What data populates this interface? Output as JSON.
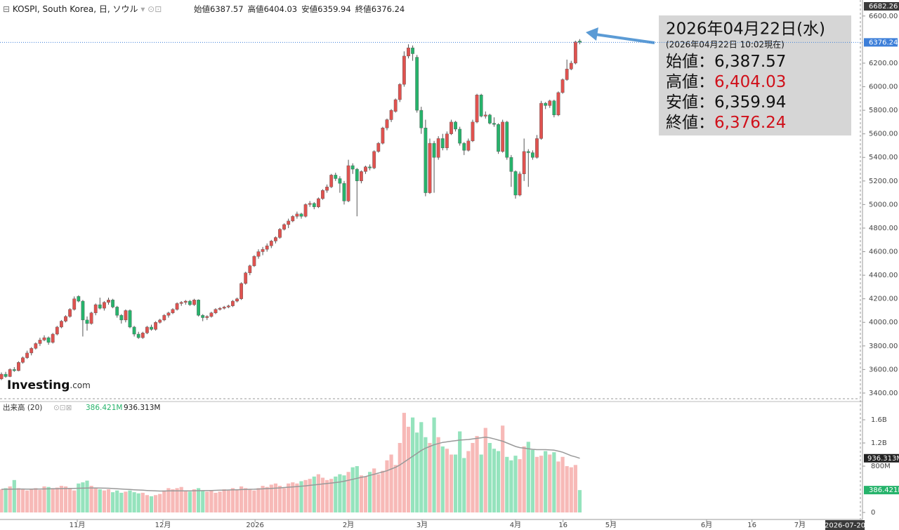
{
  "chart_data": {
    "type": "candlestick",
    "title": "KOSPI, South Korea, 日, ソウル",
    "header_labels": [
      "始値",
      "高値",
      "安値",
      "終値"
    ],
    "up_color": "#e0524f",
    "down_color": "#26b36b",
    "ohlc": [
      [
        3520,
        3575,
        3510,
        3560
      ],
      [
        3560,
        3580,
        3530,
        3540
      ],
      [
        3540,
        3610,
        3535,
        3600
      ],
      [
        3600,
        3620,
        3580,
        3590
      ],
      [
        3590,
        3670,
        3585,
        3660
      ],
      [
        3660,
        3710,
        3650,
        3700
      ],
      [
        3700,
        3760,
        3690,
        3740
      ],
      [
        3740,
        3790,
        3720,
        3780
      ],
      [
        3780,
        3830,
        3770,
        3820
      ],
      [
        3820,
        3870,
        3800,
        3850
      ],
      [
        3850,
        3890,
        3840,
        3870
      ],
      [
        3870,
        3880,
        3810,
        3830
      ],
      [
        3830,
        3910,
        3820,
        3900
      ],
      [
        3900,
        3970,
        3890,
        3960
      ],
      [
        3960,
        4020,
        3950,
        4010
      ],
      [
        4010,
        4060,
        4000,
        4050
      ],
      [
        4050,
        4120,
        4040,
        4110
      ],
      [
        4110,
        4220,
        4100,
        4200
      ],
      [
        4220,
        4230,
        4170,
        4180
      ],
      [
        4180,
        4190,
        3880,
        4020
      ],
      [
        4020,
        4050,
        3930,
        3990
      ],
      [
        3990,
        4090,
        3980,
        4080
      ],
      [
        4080,
        4160,
        4060,
        4150
      ],
      [
        4150,
        4210,
        4110,
        4120
      ],
      [
        4120,
        4180,
        4100,
        4170
      ],
      [
        4170,
        4210,
        4150,
        4190
      ],
      [
        4190,
        4200,
        4120,
        4130
      ],
      [
        4130,
        4140,
        4040,
        4060
      ],
      [
        4060,
        4070,
        3990,
        4020
      ],
      [
        4020,
        4110,
        4000,
        4100
      ],
      [
        4100,
        4110,
        3950,
        3960
      ],
      [
        3960,
        3970,
        3880,
        3900
      ],
      [
        3900,
        3920,
        3860,
        3870
      ],
      [
        3870,
        3920,
        3860,
        3910
      ],
      [
        3910,
        3970,
        3900,
        3960
      ],
      [
        3960,
        3980,
        3930,
        3940
      ],
      [
        3940,
        4010,
        3930,
        4000
      ],
      [
        4000,
        4030,
        3990,
        4020
      ],
      [
        4020,
        4070,
        4010,
        4060
      ],
      [
        4060,
        4090,
        4040,
        4080
      ],
      [
        4080,
        4120,
        4070,
        4110
      ],
      [
        4110,
        4170,
        4100,
        4160
      ],
      [
        4160,
        4180,
        4140,
        4170
      ],
      [
        4170,
        4190,
        4150,
        4180
      ],
      [
        4180,
        4190,
        4140,
        4150
      ],
      [
        4150,
        4200,
        4140,
        4190
      ],
      [
        4190,
        4195,
        4050,
        4060
      ],
      [
        4060,
        4070,
        4010,
        4040
      ],
      [
        4040,
        4060,
        4020,
        4050
      ],
      [
        4050,
        4090,
        4040,
        4080
      ],
      [
        4080,
        4120,
        4070,
        4110
      ],
      [
        4110,
        4130,
        4100,
        4120
      ],
      [
        4120,
        4140,
        4110,
        4130
      ],
      [
        4130,
        4150,
        4120,
        4140
      ],
      [
        4140,
        4190,
        4130,
        4180
      ],
      [
        4180,
        4210,
        4170,
        4200
      ],
      [
        4200,
        4340,
        4190,
        4330
      ],
      [
        4330,
        4430,
        4320,
        4420
      ],
      [
        4420,
        4490,
        4400,
        4480
      ],
      [
        4480,
        4570,
        4470,
        4560
      ],
      [
        4560,
        4620,
        4540,
        4600
      ],
      [
        4600,
        4640,
        4570,
        4620
      ],
      [
        4620,
        4670,
        4600,
        4650
      ],
      [
        4650,
        4700,
        4630,
        4690
      ],
      [
        4690,
        4730,
        4670,
        4720
      ],
      [
        4720,
        4800,
        4710,
        4790
      ],
      [
        4790,
        4840,
        4780,
        4830
      ],
      [
        4830,
        4880,
        4800,
        4860
      ],
      [
        4860,
        4910,
        4850,
        4900
      ],
      [
        4900,
        4940,
        4880,
        4920
      ],
      [
        4920,
        4930,
        4880,
        4900
      ],
      [
        4900,
        5010,
        4890,
        5000
      ],
      [
        5000,
        5030,
        4980,
        5010
      ],
      [
        5010,
        5020,
        4960,
        4980
      ],
      [
        4980,
        5060,
        4970,
        5050
      ],
      [
        5050,
        5130,
        5040,
        5120
      ],
      [
        5120,
        5170,
        5100,
        5150
      ],
      [
        5150,
        5260,
        5140,
        5250
      ],
      [
        5250,
        5270,
        5200,
        5220
      ],
      [
        5220,
        5240,
        5100,
        5180
      ],
      [
        5180,
        5200,
        5000,
        5030
      ],
      [
        5030,
        5380,
        5020,
        5330
      ],
      [
        5330,
        5350,
        5260,
        5300
      ],
      [
        5300,
        5310,
        4900,
        5200
      ],
      [
        5200,
        5290,
        5180,
        5280
      ],
      [
        5280,
        5330,
        5260,
        5320
      ],
      [
        5320,
        5340,
        5290,
        5310
      ],
      [
        5310,
        5460,
        5300,
        5450
      ],
      [
        5450,
        5530,
        5440,
        5520
      ],
      [
        5520,
        5660,
        5510,
        5650
      ],
      [
        5650,
        5730,
        5630,
        5720
      ],
      [
        5720,
        5810,
        5700,
        5800
      ],
      [
        5790,
        5900,
        5780,
        5890
      ],
      [
        5890,
        6030,
        5870,
        6020
      ],
      [
        6020,
        6300,
        6000,
        6260
      ],
      [
        6260,
        6360,
        6240,
        6330
      ],
      [
        6330,
        6350,
        6220,
        6280
      ],
      [
        6250,
        6270,
        5780,
        5800
      ],
      [
        5800,
        5830,
        5600,
        5650
      ],
      [
        5650,
        5720,
        5070,
        5100
      ],
      [
        5100,
        5560,
        5090,
        5520
      ],
      [
        5520,
        5540,
        5100,
        5400
      ],
      [
        5400,
        5580,
        5380,
        5560
      ],
      [
        5560,
        5600,
        5460,
        5480
      ],
      [
        5480,
        5620,
        5460,
        5600
      ],
      [
        5600,
        5720,
        5590,
        5700
      ],
      [
        5700,
        5710,
        5620,
        5640
      ],
      [
        5640,
        5660,
        5500,
        5520
      ],
      [
        5520,
        5530,
        5420,
        5460
      ],
      [
        5460,
        5560,
        5450,
        5540
      ],
      [
        5540,
        5720,
        5530,
        5700
      ],
      [
        5700,
        5940,
        5690,
        5930
      ],
      [
        5930,
        5940,
        5740,
        5750
      ],
      [
        5750,
        5790,
        5730,
        5760
      ],
      [
        5760,
        5770,
        5680,
        5690
      ],
      [
        5690,
        5740,
        5660,
        5680
      ],
      [
        5680,
        5690,
        5430,
        5450
      ],
      [
        5450,
        5720,
        5440,
        5700
      ],
      [
        5700,
        5710,
        5380,
        5400
      ],
      [
        5400,
        5420,
        5150,
        5280
      ],
      [
        5280,
        5290,
        5050,
        5080
      ],
      [
        5080,
        5280,
        5070,
        5260
      ],
      [
        5260,
        5560,
        5200,
        5450
      ],
      [
        5450,
        5470,
        5150,
        5440
      ],
      [
        5440,
        5460,
        5380,
        5400
      ],
      [
        5400,
        5590,
        5390,
        5560
      ],
      [
        5560,
        5880,
        5550,
        5860
      ],
      [
        5860,
        5870,
        5810,
        5840
      ],
      [
        5840,
        5890,
        5820,
        5880
      ],
      [
        5880,
        5890,
        5740,
        5760
      ],
      [
        5760,
        5960,
        5750,
        5950
      ],
      [
        5950,
        6070,
        5940,
        6060
      ],
      [
        6060,
        6230,
        6050,
        6150
      ],
      [
        6150,
        6220,
        6140,
        6200
      ],
      [
        6200,
        6390,
        6190,
        6380
      ],
      [
        6387.57,
        6404.03,
        6359.94,
        6376.24
      ]
    ],
    "xlim": [
      -0.33,
      200.5
    ],
    "xticks": [
      {
        "value": 17.7,
        "label": "11月"
      },
      {
        "value": 37.7,
        "label": "12月"
      },
      {
        "value": 59.2,
        "label": "2026"
      },
      {
        "value": 81,
        "label": "2月"
      },
      {
        "value": 98.2,
        "label": "3月"
      },
      {
        "value": 120,
        "label": "4月"
      },
      {
        "value": 131.1,
        "label": "16"
      },
      {
        "value": 142.3,
        "label": "5月"
      },
      {
        "value": 164.6,
        "label": "6月"
      },
      {
        "value": 175.2,
        "label": "16"
      },
      {
        "value": 186.4,
        "label": "7月"
      }
    ],
    "crosshair_x": {
      "value": 196.9,
      "label": "2026-07-20"
    },
    "ylim": [
      3340,
      6682.26
    ],
    "yticks": [
      {
        "value": 3400,
        "label": "3400.00"
      },
      {
        "value": 3600,
        "label": "3600.00"
      },
      {
        "value": 3800,
        "label": "3800.00"
      },
      {
        "value": 4000,
        "label": "4000.00"
      },
      {
        "value": 4200,
        "label": "4200.00"
      },
      {
        "value": 4400,
        "label": "4400.00"
      },
      {
        "value": 4600,
        "label": "4600.00"
      },
      {
        "value": 4800,
        "label": "4800.00"
      },
      {
        "value": 5000,
        "label": "5000.00"
      },
      {
        "value": 5200,
        "label": "5200.00"
      },
      {
        "value": 5400,
        "label": "5400.00"
      },
      {
        "value": 5600,
        "label": "5600.00"
      },
      {
        "value": 5800,
        "label": "5800.00"
      },
      {
        "value": 6000,
        "label": "6000.00"
      },
      {
        "value": 6200,
        "label": "6200.00"
      },
      {
        "value": 6600,
        "label": "6600.00"
      }
    ],
    "volume": {
      "title": "出来高 (20)",
      "up_color": "#f7b9b7",
      "down_color": "#95e3bd",
      "ylim": [
        -121,
        1879
      ],
      "yticks": [
        0,
        {
          "value": 800,
          "label": "800M"
        },
        {
          "value": 1200,
          "label": "1.2B"
        },
        {
          "value": 1600,
          "label": "1.6B"
        }
      ],
      "values": [
        400,
        420,
        450,
        560,
        420,
        400,
        380,
        400,
        420,
        390,
        450,
        440,
        420,
        430,
        460,
        450,
        420,
        380,
        500,
        520,
        550,
        460,
        420,
        400,
        380,
        400,
        350,
        380,
        340,
        360,
        380,
        350,
        330,
        340,
        300,
        280,
        300,
        320,
        380,
        420,
        400,
        420,
        440,
        380,
        360,
        400,
        420,
        380,
        360,
        380,
        340,
        360,
        400,
        380,
        420,
        390,
        450,
        420,
        400,
        380,
        420,
        460,
        440,
        480,
        500,
        460,
        420,
        500,
        520,
        500,
        540,
        560,
        580,
        620,
        660,
        600,
        560,
        580,
        620,
        660,
        640,
        700,
        780,
        800,
        640,
        620,
        700,
        760,
        660,
        720,
        900,
        1000,
        820,
        1200,
        1720,
        1480,
        1640,
        1380,
        1560,
        1300,
        1200,
        1640,
        1300,
        1140,
        1100,
        1000,
        1000,
        1400,
        940,
        1060,
        1200,
        1320,
        1000,
        1460,
        1200,
        1100,
        1060,
        1500,
        960,
        900,
        980,
        920,
        1140,
        1220,
        1080,
        960,
        980,
        1060,
        1000,
        1040,
        880,
        960,
        800,
        780,
        820,
        386.421
      ],
      "last_label": "386.421M",
      "ma": {
        "color": "#999999",
        "values": [
          400,
          400,
          402,
          404,
          405,
          405,
          404,
          404,
          405,
          405,
          406,
          408,
          410,
          410,
          412,
          414,
          415,
          415,
          418,
          420,
          422,
          423,
          423,
          422,
          420,
          418,
          414,
          410,
          405,
          400,
          396,
          392,
          388,
          384,
          380,
          376,
          372,
          370,
          370,
          372,
          372,
          373,
          374,
          374,
          374,
          375,
          376,
          377,
          378,
          380,
          382,
          384,
          386,
          388,
          390,
          392,
          395,
          398,
          400,
          402,
          405,
          408,
          412,
          416,
          420,
          425,
          430,
          436,
          442,
          448,
          454,
          460,
          468,
          476,
          484,
          492,
          500,
          508,
          516,
          526,
          540,
          556,
          572,
          590,
          606,
          620,
          640,
          660,
          680,
          700,
          720,
          750,
          780,
          820,
          870,
          920,
          970,
          1020,
          1070,
          1110,
          1140,
          1170,
          1190,
          1210,
          1220,
          1230,
          1240,
          1250,
          1255,
          1260,
          1270,
          1280,
          1290,
          1300,
          1290,
          1270,
          1250,
          1230,
          1200,
          1170,
          1140,
          1120,
          1110,
          1100,
          1090,
          1085,
          1085,
          1085,
          1080,
          1075,
          1060,
          1040,
          1010,
          980,
          960,
          936.313
        ],
        "last_label": "936.313M"
      }
    },
    "info_box": {
      "date": "2026年04月22日(水)",
      "time": "(2026年04月22日 10:02現在)",
      "rows": [
        {
          "label": "始値：",
          "value": "6,387.57",
          "color": "#111111"
        },
        {
          "label": "高値：",
          "value": "6,404.03",
          "color": "#d0101a"
        },
        {
          "label": "安値：",
          "value": "6,359.94",
          "color": "#111111"
        },
        {
          "label": "終値：",
          "value": "6,376.24",
          "color": "#d0101a"
        }
      ]
    },
    "logo": {
      "name": "Investing",
      "suffix": ".com"
    }
  }
}
